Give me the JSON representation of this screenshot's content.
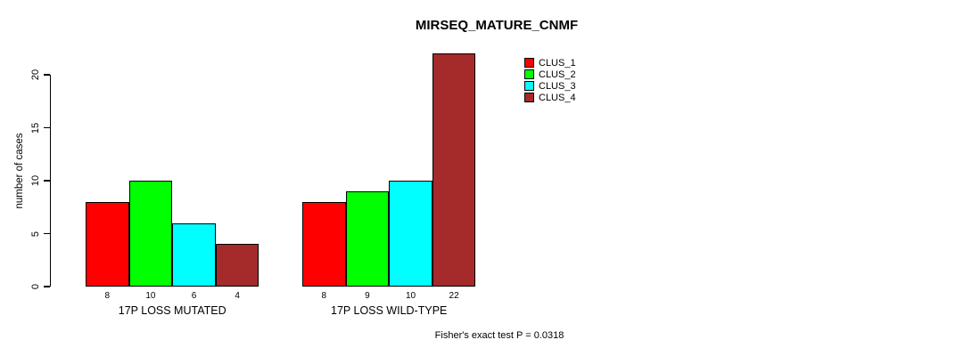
{
  "chart_data": {
    "type": "bar",
    "title": "MIRSEQ_MATURE_CNMF",
    "ylabel": "number of cases",
    "xlabel": "",
    "ylim": [
      0,
      22
    ],
    "yticks": [
      0,
      5,
      10,
      15,
      20
    ],
    "grid": false,
    "legend_position": "top-right",
    "series": [
      {
        "name": "CLUS_1",
        "color": "#ff0000"
      },
      {
        "name": "CLUS_2",
        "color": "#00ff00"
      },
      {
        "name": "CLUS_3",
        "color": "#00ffff"
      },
      {
        "name": "CLUS_4",
        "color": "#a52a2a"
      }
    ],
    "categories": [
      "17P LOSS MUTATED",
      "17P LOSS WILD-TYPE"
    ],
    "groups": [
      {
        "label": "17P LOSS MUTATED",
        "values": [
          8,
          10,
          6,
          4
        ]
      },
      {
        "label": "17P LOSS WILD-TYPE",
        "values": [
          8,
          9,
          10,
          22
        ]
      }
    ],
    "bar_value_labels_shown": true,
    "annotation": "Fisher's exact test P = 0.0318"
  }
}
